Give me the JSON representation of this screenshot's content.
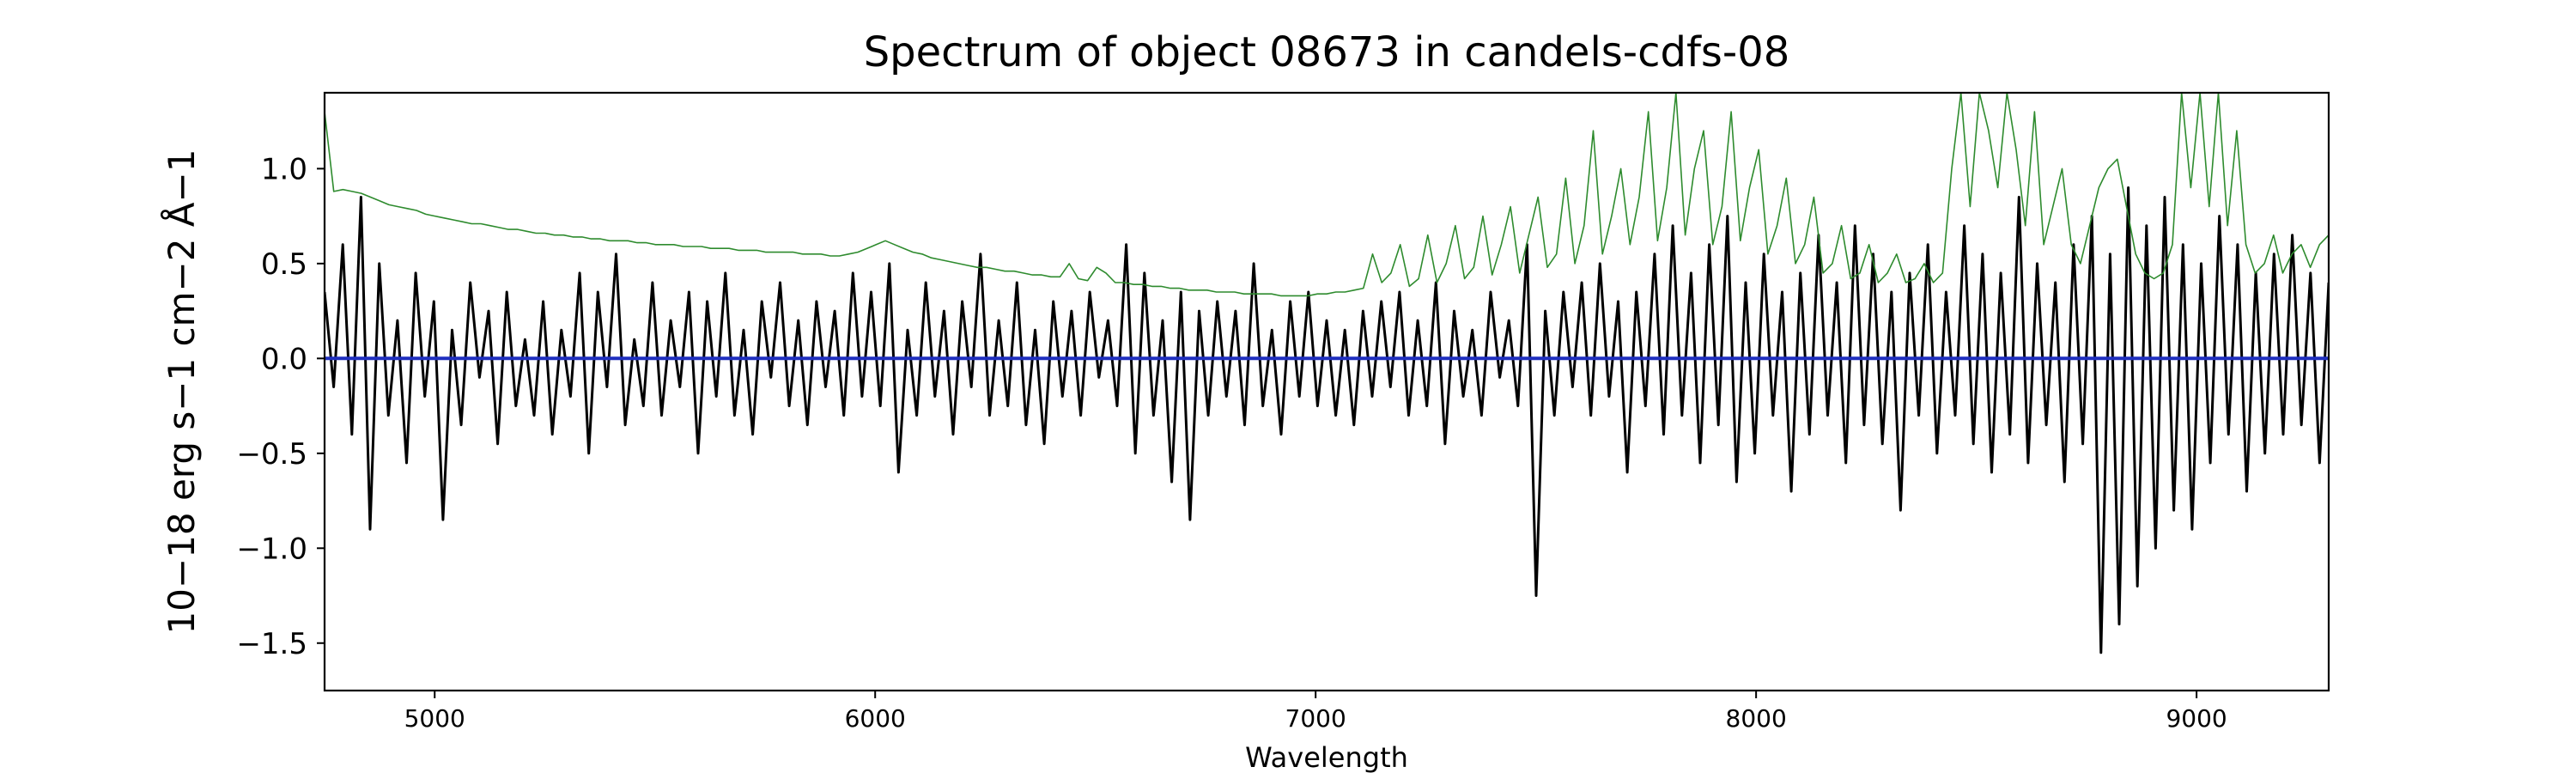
{
  "chart_data": {
    "type": "line",
    "title": "Spectrum of object 08673 in candels-cdfs-08",
    "xlabel": "Wavelength",
    "ylabel": "10−18 erg s−1 cm−2 Å−1",
    "xlim": [
      4750,
      9300
    ],
    "ylim": [
      -1.75,
      1.4
    ],
    "x_ticks": [
      5000,
      6000,
      7000,
      8000,
      9000
    ],
    "x_tick_labels": [
      "5000",
      "6000",
      "7000",
      "8000",
      "9000"
    ],
    "y_ticks": [
      -1.5,
      -1.0,
      -0.5,
      0.0,
      0.5,
      1.0
    ],
    "y_tick_labels": [
      "−1.5",
      "−1.0",
      "−0.5",
      "0.0",
      "0.5",
      "1.0"
    ],
    "grid": false,
    "series": [
      {
        "role": "flux",
        "color": "#000000",
        "x_start": 4750,
        "x_end": 9300,
        "values": [
          0.35,
          -0.15,
          0.6,
          -0.4,
          0.85,
          -0.9,
          0.5,
          -0.3,
          0.2,
          -0.55,
          0.45,
          -0.2,
          0.3,
          -0.85,
          0.15,
          -0.35,
          0.4,
          -0.1,
          0.25,
          -0.45,
          0.35,
          -0.25,
          0.1,
          -0.3,
          0.3,
          -0.4,
          0.15,
          -0.2,
          0.45,
          -0.5,
          0.35,
          -0.15,
          0.55,
          -0.35,
          0.1,
          -0.25,
          0.4,
          -0.3,
          0.2,
          -0.15,
          0.35,
          -0.5,
          0.3,
          -0.2,
          0.45,
          -0.3,
          0.15,
          -0.4,
          0.3,
          -0.1,
          0.4,
          -0.25,
          0.2,
          -0.35,
          0.3,
          -0.15,
          0.25,
          -0.3,
          0.45,
          -0.2,
          0.35,
          -0.25,
          0.5,
          -0.6,
          0.15,
          -0.3,
          0.4,
          -0.2,
          0.25,
          -0.4,
          0.3,
          -0.15,
          0.55,
          -0.3,
          0.2,
          -0.25,
          0.4,
          -0.35,
          0.15,
          -0.45,
          0.3,
          -0.2,
          0.25,
          -0.3,
          0.35,
          -0.1,
          0.2,
          -0.25,
          0.6,
          -0.5,
          0.45,
          -0.3,
          0.2,
          -0.65,
          0.35,
          -0.85,
          0.25,
          -0.3,
          0.3,
          -0.2,
          0.25,
          -0.35,
          0.5,
          -0.25,
          0.15,
          -0.4,
          0.3,
          -0.2,
          0.35,
          -0.25,
          0.2,
          -0.3,
          0.15,
          -0.35,
          0.25,
          -0.2,
          0.3,
          -0.15,
          0.35,
          -0.3,
          0.2,
          -0.25,
          0.4,
          -0.45,
          0.25,
          -0.2,
          0.15,
          -0.3,
          0.35,
          -0.1,
          0.2,
          -0.25,
          0.6,
          -1.25,
          0.25,
          -0.3,
          0.35,
          -0.15,
          0.4,
          -0.3,
          0.5,
          -0.2,
          0.3,
          -0.6,
          0.35,
          -0.25,
          0.55,
          -0.4,
          0.7,
          -0.3,
          0.45,
          -0.55,
          0.6,
          -0.35,
          0.75,
          -0.65,
          0.4,
          -0.5,
          0.55,
          -0.3,
          0.35,
          -0.7,
          0.45,
          -0.4,
          0.65,
          -0.3,
          0.4,
          -0.55,
          0.7,
          -0.35,
          0.55,
          -0.45,
          0.35,
          -0.8,
          0.45,
          -0.3,
          0.6,
          -0.5,
          0.35,
          -0.3,
          0.7,
          -0.45,
          0.55,
          -0.6,
          0.45,
          -0.4,
          0.85,
          -0.55,
          0.5,
          -0.35,
          0.4,
          -0.65,
          0.6,
          -0.45,
          0.75,
          -1.55,
          0.55,
          -1.4,
          0.9,
          -1.2,
          0.7,
          -1.0,
          0.85,
          -0.8,
          0.6,
          -0.9,
          0.5,
          -0.55,
          0.75,
          -0.4,
          0.6,
          -0.7,
          0.45,
          -0.5,
          0.55,
          -0.4,
          0.65,
          -0.35,
          0.45,
          -0.55,
          0.4
        ]
      },
      {
        "role": "error",
        "color": "#2e8b2e",
        "x_start": 4750,
        "x_end": 9300,
        "values": [
          1.3,
          0.88,
          0.89,
          0.88,
          0.87,
          0.85,
          0.83,
          0.81,
          0.8,
          0.79,
          0.78,
          0.76,
          0.75,
          0.74,
          0.73,
          0.72,
          0.71,
          0.71,
          0.7,
          0.69,
          0.68,
          0.68,
          0.67,
          0.66,
          0.66,
          0.65,
          0.65,
          0.64,
          0.64,
          0.63,
          0.63,
          0.62,
          0.62,
          0.62,
          0.61,
          0.61,
          0.6,
          0.6,
          0.6,
          0.59,
          0.59,
          0.59,
          0.58,
          0.58,
          0.58,
          0.57,
          0.57,
          0.57,
          0.56,
          0.56,
          0.56,
          0.56,
          0.55,
          0.55,
          0.55,
          0.54,
          0.54,
          0.55,
          0.56,
          0.58,
          0.6,
          0.62,
          0.6,
          0.58,
          0.56,
          0.55,
          0.53,
          0.52,
          0.51,
          0.5,
          0.49,
          0.48,
          0.48,
          0.47,
          0.46,
          0.46,
          0.45,
          0.44,
          0.44,
          0.43,
          0.43,
          0.5,
          0.42,
          0.41,
          0.48,
          0.45,
          0.4,
          0.4,
          0.39,
          0.39,
          0.38,
          0.38,
          0.37,
          0.37,
          0.36,
          0.36,
          0.36,
          0.35,
          0.35,
          0.35,
          0.34,
          0.34,
          0.34,
          0.34,
          0.33,
          0.33,
          0.33,
          0.33,
          0.34,
          0.34,
          0.35,
          0.35,
          0.36,
          0.37,
          0.55,
          0.4,
          0.45,
          0.6,
          0.38,
          0.42,
          0.65,
          0.4,
          0.5,
          0.7,
          0.42,
          0.48,
          0.75,
          0.44,
          0.6,
          0.8,
          0.45,
          0.65,
          0.85,
          0.48,
          0.55,
          0.95,
          0.5,
          0.7,
          1.2,
          0.55,
          0.75,
          1.0,
          0.6,
          0.85,
          1.3,
          0.62,
          0.9,
          1.4,
          0.65,
          1.0,
          1.2,
          0.6,
          0.8,
          1.3,
          0.62,
          0.9,
          1.1,
          0.55,
          0.7,
          0.95,
          0.5,
          0.6,
          0.85,
          0.45,
          0.5,
          0.7,
          0.42,
          0.45,
          0.6,
          0.4,
          0.45,
          0.55,
          0.4,
          0.42,
          0.5,
          0.4,
          0.45,
          1.0,
          1.4,
          0.8,
          1.4,
          1.2,
          0.9,
          1.4,
          1.1,
          0.7,
          1.3,
          0.6,
          0.8,
          1.0,
          0.6,
          0.5,
          0.7,
          0.9,
          1.0,
          1.05,
          0.8,
          0.55,
          0.45,
          0.42,
          0.45,
          0.6,
          1.4,
          0.9,
          1.4,
          0.8,
          1.4,
          0.7,
          1.2,
          0.6,
          0.45,
          0.5,
          0.65,
          0.45,
          0.55,
          0.6,
          0.48,
          0.6,
          0.65
        ]
      },
      {
        "role": "zero",
        "color": "#1f2fbf",
        "x": [
          4750,
          9300
        ],
        "values": [
          0.0,
          0.0
        ]
      }
    ]
  }
}
